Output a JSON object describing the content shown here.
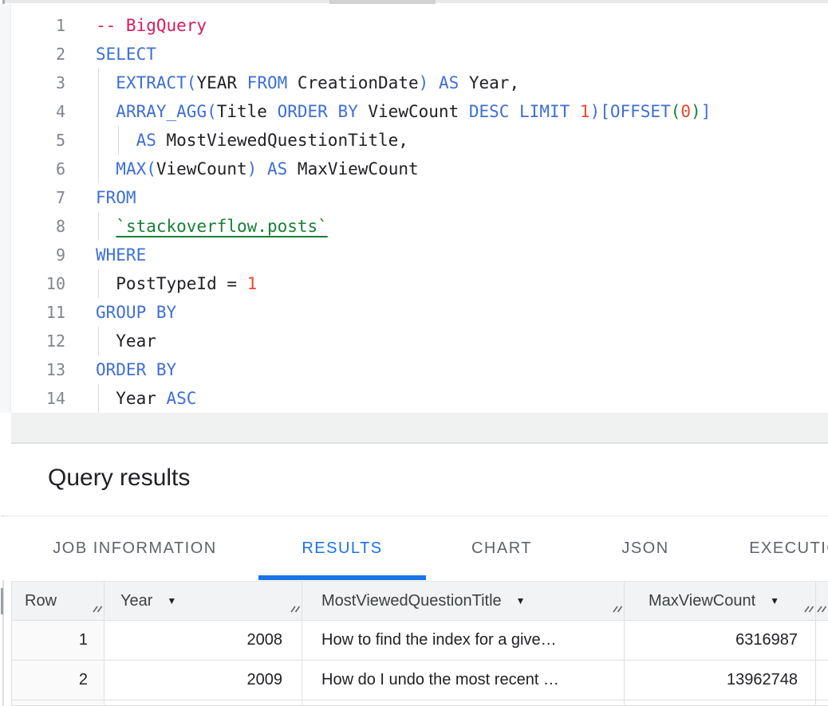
{
  "editor": {
    "lines": [
      {
        "n": "1",
        "tokens": [
          {
            "t": "-- BigQuery",
            "c": "com"
          }
        ]
      },
      {
        "n": "2",
        "tokens": [
          {
            "t": "SELECT",
            "c": "kw"
          }
        ]
      },
      {
        "n": "3",
        "tokens": [
          {
            "t": "  ",
            "c": "p"
          },
          {
            "t": "EXTRACT(",
            "c": "kw"
          },
          {
            "t": "YEAR ",
            "c": "p"
          },
          {
            "t": "FROM",
            "c": "kw"
          },
          {
            "t": " CreationDate",
            "c": "p"
          },
          {
            "t": ")",
            "c": "kw"
          },
          {
            "t": " ",
            "c": "p"
          },
          {
            "t": "AS",
            "c": "kw"
          },
          {
            "t": " Year,",
            "c": "p"
          }
        ]
      },
      {
        "n": "4",
        "tokens": [
          {
            "t": "  ",
            "c": "p"
          },
          {
            "t": "ARRAY_AGG(",
            "c": "kw"
          },
          {
            "t": "Title ",
            "c": "p"
          },
          {
            "t": "ORDER BY",
            "c": "kw"
          },
          {
            "t": " ViewCount ",
            "c": "p"
          },
          {
            "t": "DESC LIMIT",
            "c": "kw"
          },
          {
            "t": " ",
            "c": "p"
          },
          {
            "t": "1",
            "c": "num"
          },
          {
            "t": ")[OFFSET",
            "c": "kw"
          },
          {
            "t": "(",
            "c": "grn"
          },
          {
            "t": "0",
            "c": "num"
          },
          {
            "t": ")",
            "c": "grn"
          },
          {
            "t": "]",
            "c": "kw"
          }
        ]
      },
      {
        "n": "5",
        "tokens": [
          {
            "t": "    ",
            "c": "p"
          },
          {
            "t": "AS",
            "c": "kw"
          },
          {
            "t": " MostViewedQuestionTitle,",
            "c": "p"
          }
        ]
      },
      {
        "n": "6",
        "tokens": [
          {
            "t": "  ",
            "c": "p"
          },
          {
            "t": "MAX(",
            "c": "kw"
          },
          {
            "t": "ViewCount",
            "c": "p"
          },
          {
            "t": ")",
            "c": "kw"
          },
          {
            "t": " ",
            "c": "p"
          },
          {
            "t": "AS",
            "c": "kw"
          },
          {
            "t": " MaxViewCount",
            "c": "p"
          }
        ]
      },
      {
        "n": "7",
        "tokens": [
          {
            "t": "FROM",
            "c": "kw"
          }
        ]
      },
      {
        "n": "8",
        "tokens": [
          {
            "t": "  ",
            "c": "p"
          },
          {
            "t": "`stackoverflow.posts`",
            "c": "tbl"
          }
        ]
      },
      {
        "n": "9",
        "tokens": [
          {
            "t": "WHERE",
            "c": "kw"
          }
        ]
      },
      {
        "n": "10",
        "tokens": [
          {
            "t": "  PostTypeId = ",
            "c": "p"
          },
          {
            "t": "1",
            "c": "num"
          }
        ]
      },
      {
        "n": "11",
        "tokens": [
          {
            "t": "GROUP BY",
            "c": "kw"
          }
        ]
      },
      {
        "n": "12",
        "tokens": [
          {
            "t": "  Year",
            "c": "p"
          }
        ]
      },
      {
        "n": "13",
        "tokens": [
          {
            "t": "ORDER BY",
            "c": "kw"
          }
        ]
      },
      {
        "n": "14",
        "tokens": [
          {
            "t": "  Year ",
            "c": "p"
          },
          {
            "t": "ASC",
            "c": "kw"
          }
        ]
      }
    ]
  },
  "results_panel": {
    "title": "Query results",
    "tabs": [
      {
        "label": "JOB INFORMATION",
        "active": false
      },
      {
        "label": "RESULTS",
        "active": true
      },
      {
        "label": "CHART",
        "active": false
      },
      {
        "label": "JSON",
        "active": false
      },
      {
        "label": "EXECUTION DETAILS",
        "active": false
      }
    ]
  },
  "table": {
    "columns": [
      {
        "label": "Row",
        "dropdown": false
      },
      {
        "label": "Year",
        "dropdown": true
      },
      {
        "label": "MostViewedQuestionTitle",
        "dropdown": true
      },
      {
        "label": "MaxViewCount",
        "dropdown": true
      },
      {
        "label": "",
        "dropdown": false
      }
    ],
    "rows": [
      [
        "1",
        "2008",
        "How to find the index for a give…",
        "6316987"
      ],
      [
        "2",
        "2009",
        "How do I undo the most recent …",
        "13962748"
      ]
    ]
  },
  "colors": {
    "keyword_blue": "#3e6fd5",
    "comment_pink": "#d81b60",
    "number_orange": "#e8492f",
    "table_ref_green": "#188038",
    "active_tab_blue": "#1a73e8",
    "text": "#202124"
  }
}
